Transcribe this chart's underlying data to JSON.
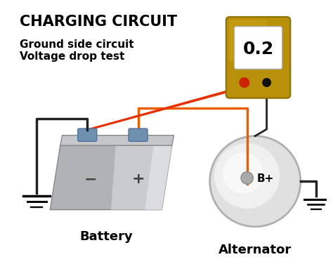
{
  "title": "CHARGING CIRCUIT",
  "subtitle_line1": "Ground side circuit",
  "subtitle_line2": "Voltage drop test",
  "battery_label": "Battery",
  "alternator_label": "Alternator",
  "meter_value": "0.2",
  "bg_color": "#ffffff",
  "wire_color_red": "#e83000",
  "wire_color_orange": "#e86000",
  "wire_color_black": "#222222",
  "meter_body_color": "#b8900a",
  "meter_body_light": "#d4aa20",
  "meter_screen_color": "#ffffff",
  "alt_body_color": "#d8d8d8",
  "title_fontsize": 15,
  "subtitle_fontsize": 11,
  "label_fontsize": 13,
  "meter_value_fontsize": 18
}
